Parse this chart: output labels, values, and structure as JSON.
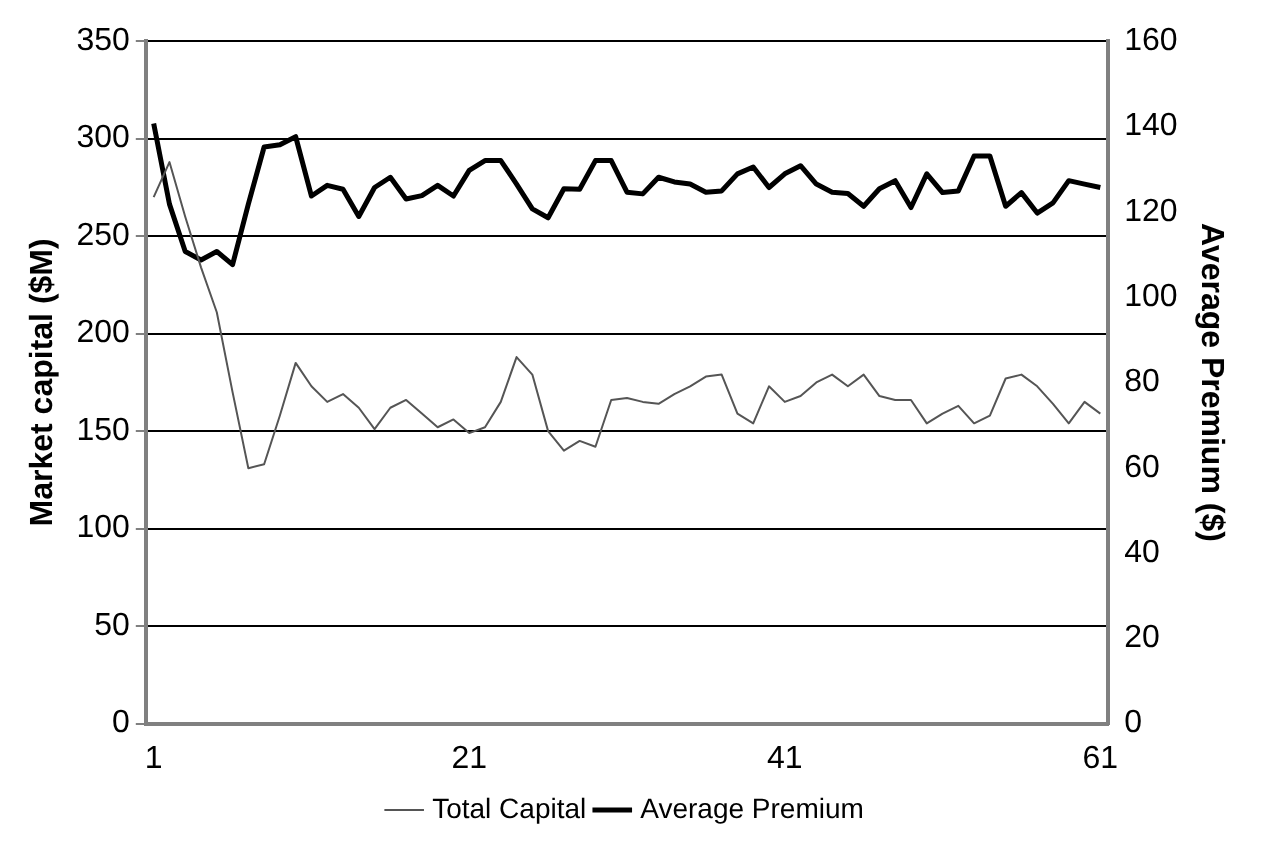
{
  "chart_data": {
    "type": "line",
    "ylabel": "Market capital ($M)",
    "y2label": "Average Premium ($)",
    "categories": [
      "1",
      null,
      null,
      null,
      null,
      null,
      null,
      null,
      null,
      null,
      null,
      null,
      null,
      null,
      null,
      null,
      null,
      null,
      null,
      null,
      "21",
      null,
      null,
      null,
      null,
      null,
      null,
      null,
      null,
      null,
      null,
      null,
      null,
      null,
      null,
      null,
      null,
      null,
      null,
      null,
      "41",
      null,
      null,
      null,
      null,
      null,
      null,
      null,
      null,
      null,
      null,
      null,
      null,
      null,
      null,
      null,
      null,
      null,
      null,
      null,
      "61"
    ],
    "series": [
      {
        "name": "Total Capital",
        "color": "#555555",
        "values": [
          270,
          288,
          260,
          234,
          211,
          170,
          131,
          133,
          158,
          185,
          173,
          165,
          169,
          162,
          151,
          162,
          166,
          159,
          152,
          156,
          149,
          152,
          165,
          188,
          179,
          150,
          140,
          145,
          142,
          166,
          167,
          165,
          164,
          169,
          173,
          178,
          179,
          159,
          154,
          173,
          165,
          168,
          175,
          179,
          173,
          179,
          168,
          166,
          166,
          154,
          159,
          163,
          154,
          158,
          177,
          179,
          173,
          164,
          154,
          165,
          159
        ]
      },
      {
        "name": "Average Premium",
        "color": "#000000",
        "axis": "y2",
        "values": [
          140.7,
          121.8,
          110.7,
          108.7,
          110.7,
          107.6,
          121.8,
          135.2,
          135.7,
          137.6,
          123.7,
          126.2,
          125.3,
          118.9,
          125.7,
          128.1,
          123,
          123.8,
          126.2,
          123.7,
          129.7,
          132,
          132,
          126.5,
          120.7,
          118.6,
          125.4,
          125.3,
          132,
          132,
          124.6,
          124.2,
          128.1,
          127,
          126.5,
          124.6,
          124.9,
          128.9,
          130.5,
          125.7,
          128.9,
          130.8,
          126.5,
          124.6,
          124.3,
          121.3,
          125.4,
          127.3,
          121,
          128.9,
          124.5,
          124.9,
          133.1,
          133.1,
          121.3,
          124.5,
          119.7,
          122.1,
          127.3,
          126.5,
          125.7
        ]
      }
    ],
    "ylim": [
      0,
      350
    ],
    "yticks": [
      0,
      50,
      100,
      150,
      200,
      250,
      300,
      350
    ],
    "y2lim": [
      0,
      160
    ],
    "y2ticks": [
      0,
      20,
      40,
      60,
      80,
      100,
      120,
      140,
      160
    ],
    "grid": "y",
    "legend": "bottom"
  }
}
